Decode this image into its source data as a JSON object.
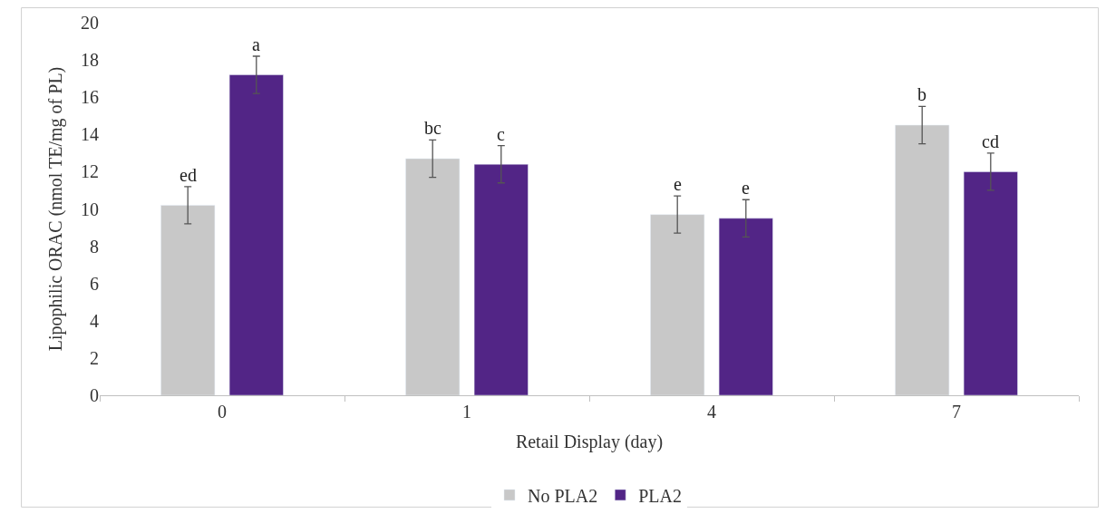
{
  "chart_data": {
    "type": "bar",
    "xlabel": "Retail Display (day)",
    "ylabel": "Lipophilic ORAC (nmol TE/mg of PL)",
    "categories": [
      "0",
      "1",
      "4",
      "7"
    ],
    "series": [
      {
        "name": "No PLA2",
        "color": "#c8c8c8",
        "values": [
          10.2,
          12.7,
          9.7,
          14.5
        ],
        "errors": [
          1.0,
          1.0,
          1.0,
          1.0
        ],
        "value_labels": [
          "ed",
          "bc",
          "e",
          "b"
        ]
      },
      {
        "name": "PLA2",
        "color": "#522586",
        "values": [
          17.2,
          12.4,
          9.5,
          12.0
        ],
        "errors": [
          1.0,
          1.0,
          1.0,
          1.0
        ],
        "value_labels": [
          "a",
          "c",
          "e",
          "cd"
        ]
      }
    ],
    "ylim": [
      0,
      20
    ],
    "yticks": [
      0,
      2,
      4,
      6,
      8,
      10,
      12,
      14,
      16,
      18,
      20
    ],
    "grid": false,
    "legend": "bottom"
  }
}
